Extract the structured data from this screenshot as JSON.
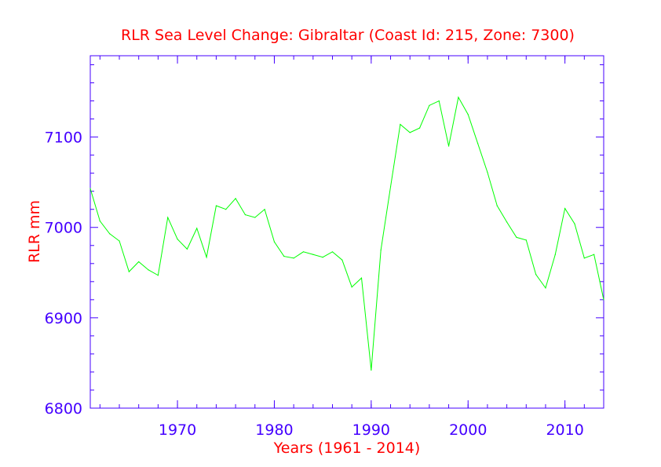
{
  "chart_data": {
    "type": "line",
    "title": "RLR Sea Level Change: Gibraltar (Coast Id: 215, Zone: 7300)",
    "xlabel": "Years (1961 - 2014)",
    "ylabel": "RLR mm",
    "xlim": [
      1961,
      2014
    ],
    "ylim": [
      6800,
      7190
    ],
    "x_ticks": [
      1970,
      1980,
      1990,
      2000,
      2010
    ],
    "x_tick_labels": [
      "1970",
      "1980",
      "1990",
      "2000",
      "2010"
    ],
    "y_ticks": [
      6800,
      6900,
      7000,
      7100
    ],
    "y_tick_labels": [
      "6800",
      "6900",
      "7000",
      "7100"
    ],
    "colors": {
      "line": "#00ff00",
      "axes": "#4400ff",
      "title": "#ff0000",
      "ticks": "#4400ff"
    },
    "series": [
      {
        "name": "Gibraltar",
        "x": [
          1961,
          1962,
          1963,
          1964,
          1965,
          1966,
          1967,
          1968,
          1969,
          1970,
          1971,
          1972,
          1973,
          1974,
          1975,
          1976,
          1977,
          1978,
          1979,
          1980,
          1981,
          1982,
          1983,
          1984,
          1985,
          1986,
          1987,
          1988,
          1989,
          1990,
          1991,
          1992,
          1993,
          1994,
          1995,
          1996,
          1997,
          1998,
          1999,
          2000,
          2001,
          2002,
          2003,
          2004,
          2005,
          2006,
          2007,
          2008,
          2009,
          2010,
          2011,
          2012,
          2013,
          2014
        ],
        "values": [
          7043,
          7007,
          6993,
          6985,
          6951,
          6962,
          6953,
          6947,
          7011,
          6987,
          6976,
          6999,
          6967,
          7024,
          7020,
          7032,
          7014,
          7011,
          7020,
          6984,
          6968,
          6966,
          6973,
          6970,
          6967,
          6973,
          6964,
          6934,
          6944,
          6842,
          6975,
          7045,
          7114,
          7105,
          7110,
          7135,
          7140,
          7090,
          7144,
          7125,
          7093,
          7061,
          7024,
          7006,
          6989,
          6986,
          6948,
          6933,
          6970,
          7021,
          7004,
          6966,
          6970,
          6920
        ]
      }
    ]
  }
}
